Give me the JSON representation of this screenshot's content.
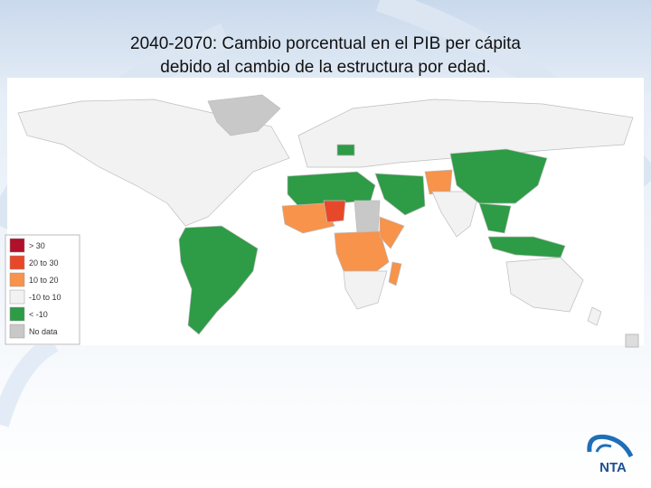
{
  "title": {
    "line1": "2040-2070:  Cambio porcentual en el PIB per cápita",
    "line2": "debido al cambio de la estructura por edad."
  },
  "legend": {
    "items": [
      {
        "label": "> 30",
        "color": "#b0102a"
      },
      {
        "label": "20 to 30",
        "color": "#e8482a"
      },
      {
        "label": "10 to 20",
        "color": "#f7934a"
      },
      {
        "label": "-10 to 10",
        "color": "#f2f2f2"
      },
      {
        "label": "< -10",
        "color": "#2e9b46"
      },
      {
        "label": "No data",
        "color": "#c8c8c8"
      }
    ]
  },
  "logo": {
    "text": "NTA"
  }
}
